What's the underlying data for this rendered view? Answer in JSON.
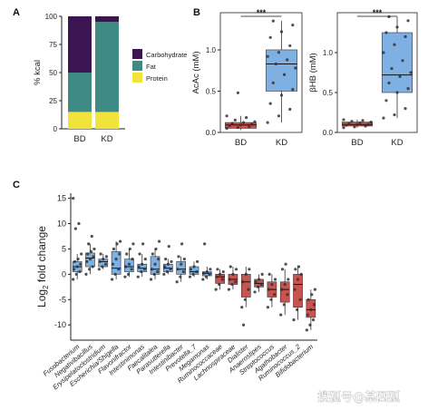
{
  "colors": {
    "carbohydrate": "#3c1451",
    "fat": "#3f8a82",
    "protein": "#f1e33a",
    "blue_box": "#7fb0e4",
    "red_box": "#c9534f",
    "dot": "#333333",
    "axis": "#222222"
  },
  "watermark": "搜狐号@基因狐",
  "chart_data": [
    {
      "panel": "A",
      "type": "bar",
      "stacked": true,
      "categories": [
        "BD",
        "KD"
      ],
      "series": [
        {
          "name": "Protein",
          "color_key": "protein",
          "values": [
            15,
            15
          ]
        },
        {
          "name": "Fat",
          "color_key": "fat",
          "values": [
            35,
            80
          ]
        },
        {
          "name": "Carbohydrate",
          "color_key": "carbohydrate",
          "values": [
            50,
            5
          ]
        }
      ],
      "ylabel": "% kcal",
      "ylim": [
        0,
        100
      ],
      "yticks": [
        0,
        25,
        50,
        75,
        100
      ],
      "legend": "right",
      "grid": false
    },
    {
      "panel": "B",
      "type": "box",
      "categories": [
        "BD",
        "KD"
      ],
      "ylabel": "AcAc (mM)",
      "ylim": [
        0,
        1.45
      ],
      "yticks": [
        0.0,
        0.5,
        1.0
      ],
      "significance": "***",
      "boxes": [
        {
          "category": "BD",
          "color_key": "red_box",
          "q1": 0.05,
          "median": 0.09,
          "q3": 0.12,
          "whisker_low": 0.03,
          "whisker_high": 0.2,
          "points": [
            0.05,
            0.06,
            0.07,
            0.08,
            0.09,
            0.1,
            0.11,
            0.12,
            0.13,
            0.15,
            0.18,
            0.2,
            0.48
          ]
        },
        {
          "category": "KD",
          "color_key": "blue_box",
          "q1": 0.5,
          "median": 0.83,
          "q3": 1.0,
          "whisker_low": 0.12,
          "whisker_high": 1.35,
          "points": [
            0.12,
            0.2,
            0.28,
            0.35,
            0.45,
            0.52,
            0.6,
            0.7,
            0.78,
            0.83,
            0.88,
            0.92,
            0.97,
            1.05,
            1.15,
            1.22,
            1.3,
            1.35
          ]
        }
      ],
      "grid": false
    },
    {
      "panel": "B",
      "type": "box",
      "categories": [
        "BD",
        "KD"
      ],
      "ylabel": "βHB (mM)",
      "ylim": [
        0,
        1.5
      ],
      "yticks": [
        0.0,
        0.5,
        1.0
      ],
      "significance": "***",
      "boxes": [
        {
          "category": "BD",
          "color_key": "red_box",
          "q1": 0.08,
          "median": 0.1,
          "q3": 0.13,
          "whisker_low": 0.06,
          "whisker_high": 0.16,
          "points": [
            0.06,
            0.07,
            0.08,
            0.09,
            0.1,
            0.1,
            0.11,
            0.12,
            0.13,
            0.14,
            0.15,
            0.16
          ]
        },
        {
          "category": "KD",
          "color_key": "blue_box",
          "q1": 0.5,
          "median": 0.72,
          "q3": 1.25,
          "whisker_low": 0.18,
          "whisker_high": 1.45,
          "points": [
            0.18,
            0.22,
            0.3,
            0.4,
            0.5,
            0.55,
            0.62,
            0.7,
            0.75,
            0.8,
            0.9,
            1.0,
            1.1,
            1.2,
            1.25,
            1.32,
            1.4,
            1.45
          ]
        }
      ],
      "grid": false
    },
    {
      "panel": "C",
      "type": "box",
      "ylabel": "Log2 fold change",
      "ylim": [
        -13,
        16
      ],
      "yticks": [
        -10,
        -5,
        0,
        5,
        10,
        15
      ],
      "categories": [
        "Fusobacterium",
        "Negativibacillus",
        "Erysipelatoclostridium",
        "Escherichia/Shigella",
        "Flavonifractor",
        "Intestinimonas",
        "Faecalitalea",
        "Parasutterella",
        "Intestinibacter",
        "Prevotella_7",
        "Megamonas",
        "Ruminococcaceae",
        "Lachnospiraceae",
        "Dialister",
        "Anaerostipes",
        "Streptococcus",
        "Agathobacter",
        "Ruminococcus_2",
        "Bifidobacterium"
      ],
      "boxes": [
        {
          "color_key": "blue_box",
          "q1": 0.5,
          "median": 1.5,
          "q3": 2.5,
          "whisker_low": -1,
          "whisker_high": 4,
          "points": [
            -1,
            0,
            0.5,
            1,
            1.5,
            2,
            2.5,
            3,
            4,
            9,
            10,
            15
          ]
        },
        {
          "color_key": "blue_box",
          "q1": 1.5,
          "median": 3.2,
          "q3": 4.2,
          "whisker_low": 0,
          "whisker_high": 6,
          "points": [
            0,
            1,
            1.5,
            2.5,
            3,
            3.5,
            4,
            4.5,
            5,
            6,
            7.5
          ]
        },
        {
          "color_key": "blue_box",
          "q1": 1.5,
          "median": 2.5,
          "q3": 3,
          "whisker_low": 1,
          "whisker_high": 4,
          "points": [
            1,
            1.5,
            2,
            2.5,
            3,
            3.5,
            4
          ]
        },
        {
          "color_key": "blue_box",
          "q1": 0,
          "median": 1.2,
          "q3": 4.5,
          "whisker_low": -1,
          "whisker_high": 6.5,
          "points": [
            -1,
            0,
            1,
            2,
            3,
            4,
            5,
            6,
            6.5
          ]
        },
        {
          "color_key": "blue_box",
          "q1": 0.5,
          "median": 1.5,
          "q3": 3,
          "whisker_low": -0.5,
          "whisker_high": 5,
          "points": [
            -0.5,
            0,
            1,
            1.5,
            2,
            3,
            4,
            5,
            6
          ]
        },
        {
          "color_key": "blue_box",
          "q1": 0.5,
          "median": 1.2,
          "q3": 2,
          "whisker_low": -0.5,
          "whisker_high": 4,
          "points": [
            -0.5,
            0.5,
            1,
            1.5,
            2,
            3,
            4,
            6
          ]
        },
        {
          "color_key": "blue_box",
          "q1": 0,
          "median": 1,
          "q3": 3.5,
          "whisker_low": -1,
          "whisker_high": 5,
          "points": [
            -1,
            0,
            0.5,
            1,
            2,
            3,
            4,
            5,
            6.5
          ]
        },
        {
          "color_key": "blue_box",
          "q1": 0.5,
          "median": 1.2,
          "q3": 2,
          "whisker_low": 0,
          "whisker_high": 3,
          "points": [
            0,
            0.5,
            1,
            1.5,
            2,
            2.5,
            3,
            5.5
          ]
        },
        {
          "color_key": "blue_box",
          "q1": 0,
          "median": 1,
          "q3": 2.5,
          "whisker_low": -1.5,
          "whisker_high": 3.5,
          "points": [
            -1.5,
            -0.5,
            0.5,
            1,
            2,
            3,
            3.5,
            6
          ]
        },
        {
          "color_key": "blue_box",
          "q1": 0,
          "median": 0.5,
          "q3": 1.5,
          "whisker_low": -0.5,
          "whisker_high": 2.5,
          "points": [
            -0.5,
            0,
            0.5,
            1,
            1.5,
            2.5
          ]
        },
        {
          "color_key": "blue_box",
          "q1": -0.3,
          "median": 0.2,
          "q3": 0.5,
          "whisker_low": -1,
          "whisker_high": 1.5,
          "points": [
            -1,
            -0.5,
            0,
            0.2,
            0.5,
            1,
            6
          ]
        },
        {
          "color_key": "red_box",
          "q1": -1.8,
          "median": -0.5,
          "q3": 0,
          "whisker_low": -3,
          "whisker_high": 1,
          "points": [
            -3,
            -2,
            -1,
            -0.5,
            0,
            0.5,
            1
          ]
        },
        {
          "color_key": "red_box",
          "q1": -2,
          "median": -1,
          "q3": 0,
          "whisker_low": -3,
          "whisker_high": 1.5,
          "points": [
            -3,
            -2,
            -1.5,
            -1,
            0,
            1,
            1.5
          ]
        },
        {
          "color_key": "red_box",
          "q1": -4.5,
          "median": -1.5,
          "q3": 0,
          "whisker_low": -6.5,
          "whisker_high": 1.5,
          "points": [
            -6.5,
            -5,
            -3,
            -1.5,
            0,
            1,
            -10
          ]
        },
        {
          "color_key": "red_box",
          "q1": -2.5,
          "median": -1.8,
          "q3": -1,
          "whisker_low": -3.5,
          "whisker_high": 0,
          "points": [
            -3.5,
            -2.5,
            -2,
            -1.5,
            -1,
            0
          ]
        },
        {
          "color_key": "red_box",
          "q1": -4.5,
          "median": -3,
          "q3": -1.5,
          "whisker_low": -6.5,
          "whisker_high": 0,
          "points": [
            -6.5,
            -5,
            -4,
            -3,
            -2,
            -1,
            0
          ]
        },
        {
          "color_key": "red_box",
          "q1": -5.5,
          "median": -3,
          "q3": -1.5,
          "whisker_low": -8,
          "whisker_high": 1,
          "points": [
            -8,
            -6,
            -4,
            -3,
            -2,
            -1,
            1,
            2
          ]
        },
        {
          "color_key": "red_box",
          "q1": -6.5,
          "median": -2,
          "q3": 0,
          "whisker_low": -9,
          "whisker_high": 1.5,
          "points": [
            -9,
            -7,
            -5,
            -3,
            -1,
            0,
            1,
            1.5
          ]
        },
        {
          "color_key": "red_box",
          "q1": -8.5,
          "median": -7,
          "q3": -5,
          "whisker_low": -11,
          "whisker_high": -3,
          "points": [
            -11,
            -10,
            -9,
            -8,
            -7,
            -6,
            -5,
            -4,
            -3
          ]
        }
      ],
      "grid": false
    }
  ]
}
